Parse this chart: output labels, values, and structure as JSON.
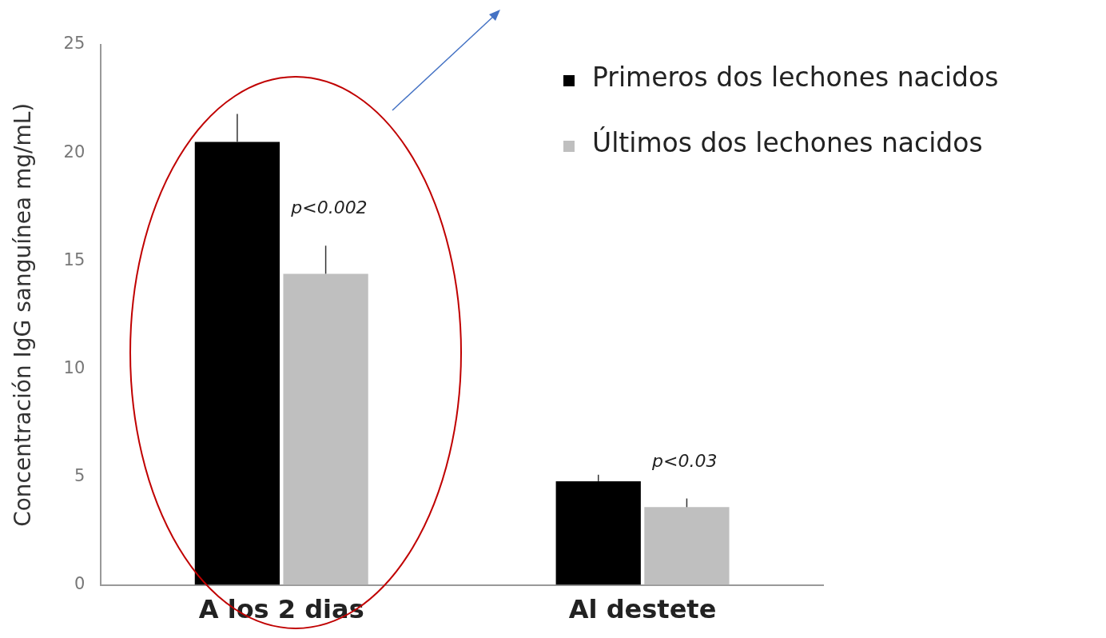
{
  "chart_data": {
    "type": "bar",
    "ylabel": "Concentración IgG sanguínea mg/mL)",
    "categories": [
      "A los 2 dias",
      "Al destete"
    ],
    "series": [
      {
        "name": "Primeros dos lechones nacidos",
        "color": "#000000",
        "values": [
          20.5,
          4.8
        ],
        "errors": [
          [
            20.5,
            21.8
          ],
          [
            4.8,
            5.1
          ]
        ]
      },
      {
        "name": "Últimos dos lechones nacidos",
        "color": "#bfbfbf",
        "values": [
          14.4,
          3.6
        ],
        "errors": [
          [
            14.4,
            15.7
          ],
          [
            3.6,
            4.0
          ]
        ]
      }
    ],
    "ylim": [
      0,
      25
    ],
    "yticks": [
      0,
      5,
      10,
      15,
      20,
      25
    ],
    "grid": false,
    "legend": "top right",
    "annotations": [
      {
        "text": "p<0.002",
        "x": "A los 2 dias",
        "y": 15.7
      },
      {
        "text": "p<0.03",
        "x": "Al destete",
        "y": 4.0
      }
    ]
  }
}
